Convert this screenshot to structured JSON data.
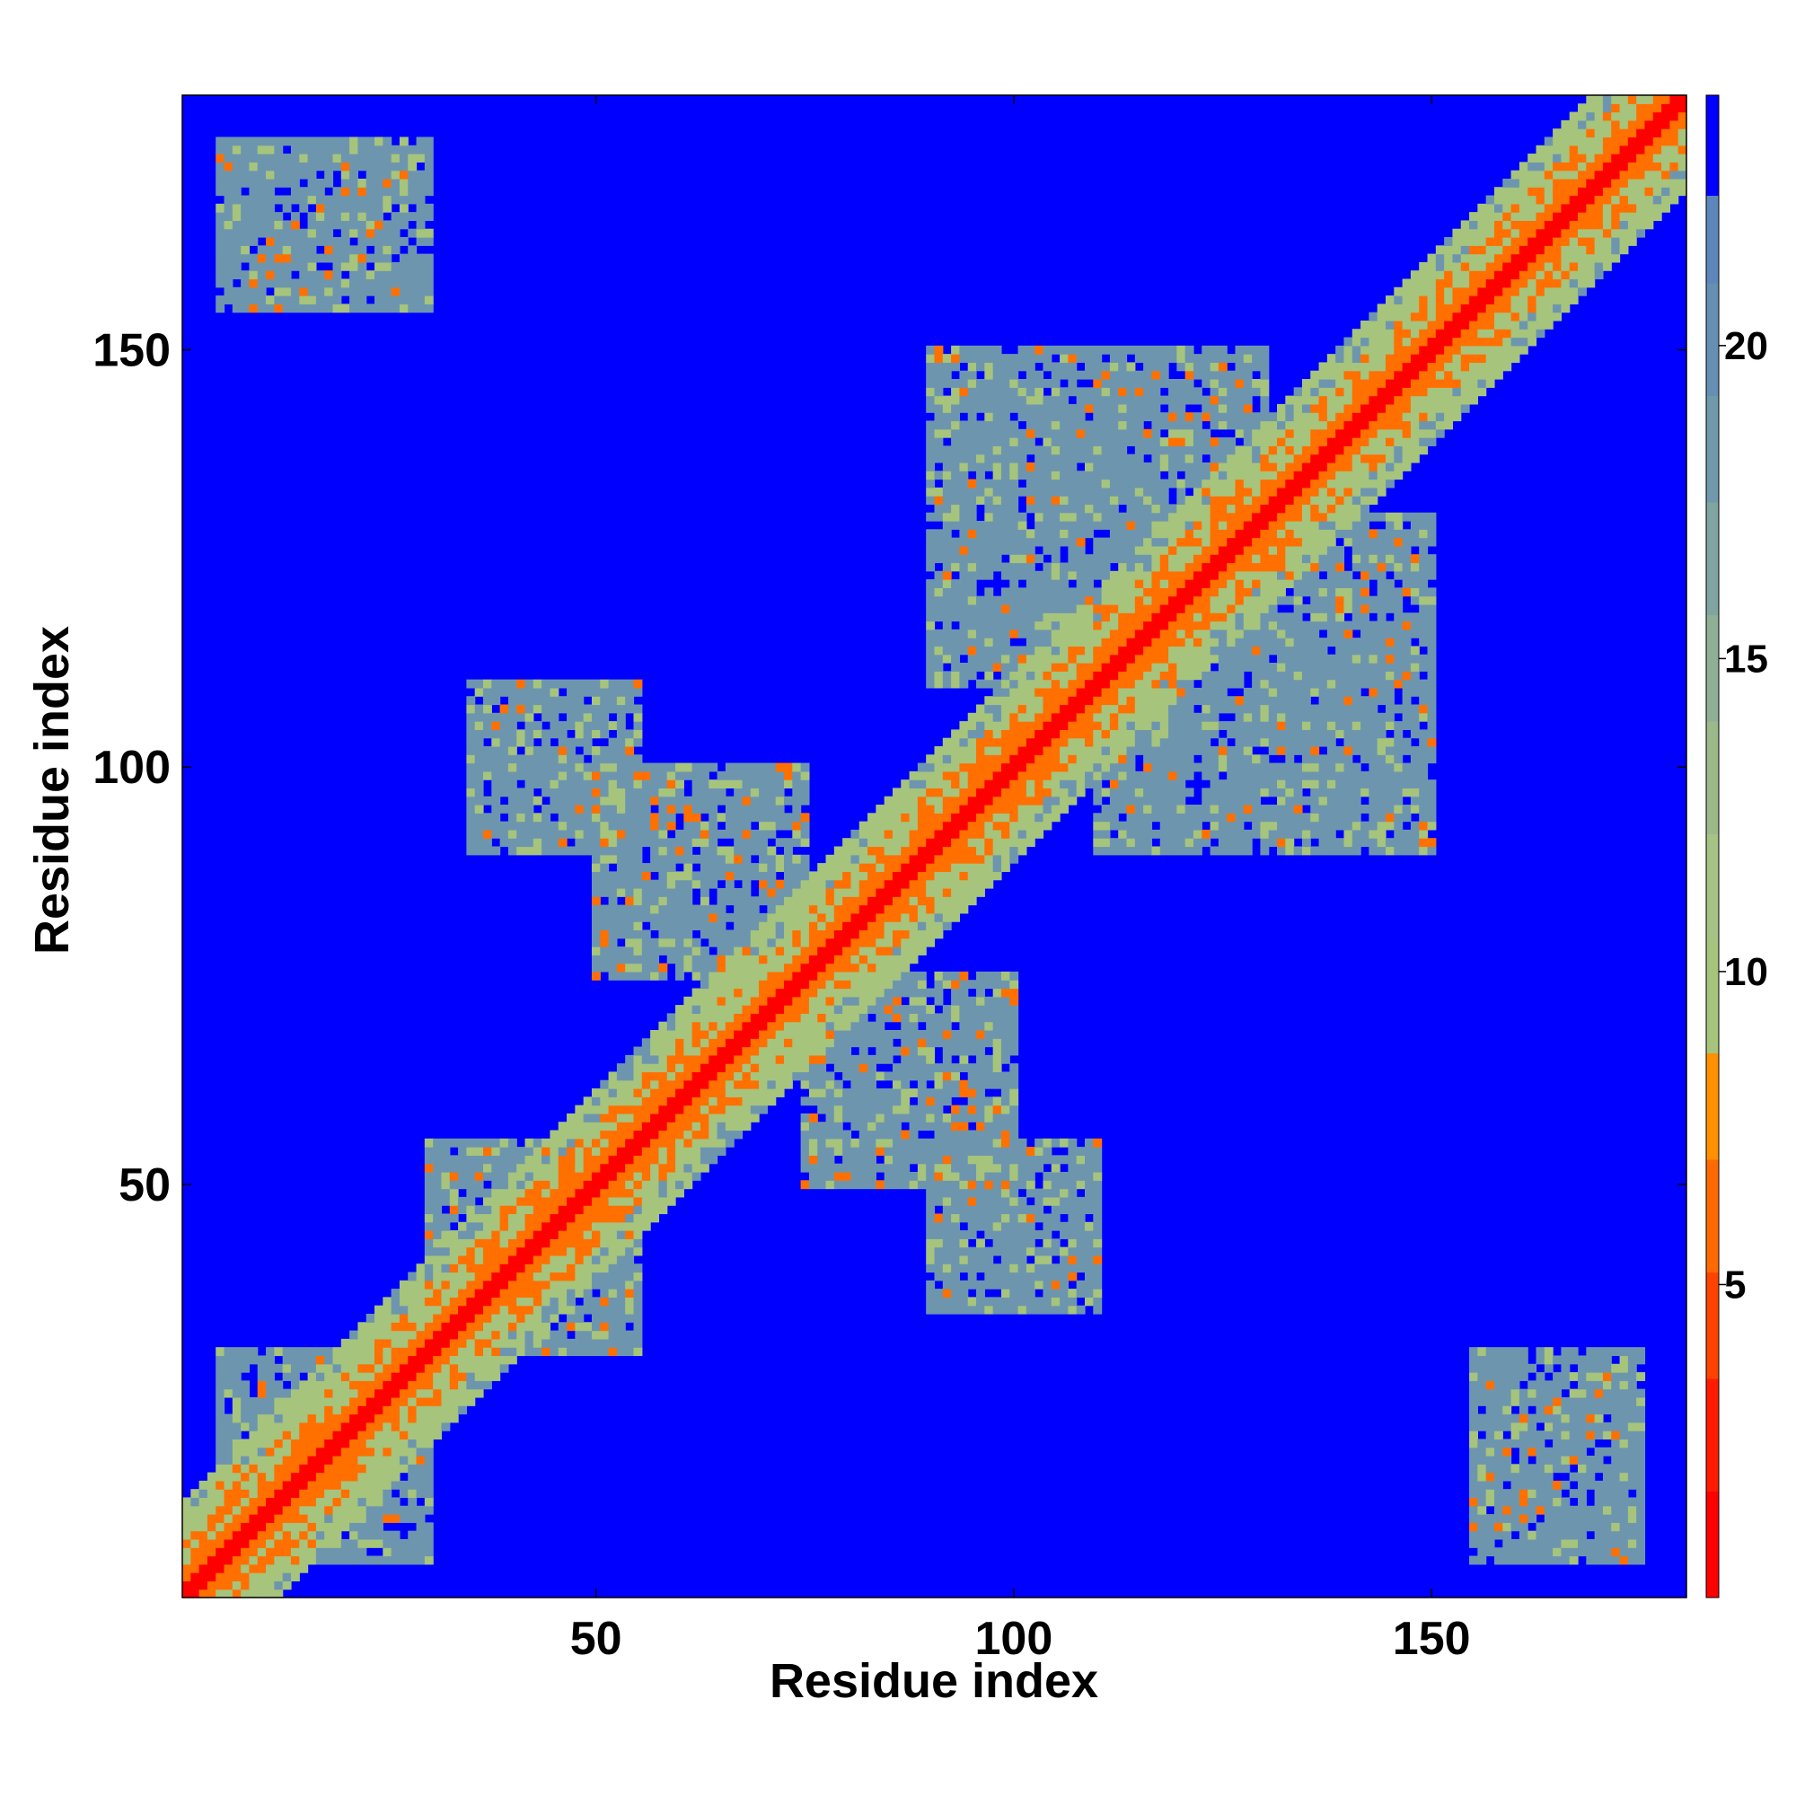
{
  "chart_data": {
    "type": "heatmap",
    "title": "",
    "xlabel": "Residue index",
    "ylabel": "Residue index",
    "n_residues": 180,
    "xlim": [
      1,
      180
    ],
    "ylim": [
      1,
      180
    ],
    "x_ticks": [
      50,
      100,
      150
    ],
    "y_ticks": [
      50,
      100,
      150
    ],
    "x_tick_labels": [
      "50",
      "100",
      "150"
    ],
    "y_tick_labels": [
      "50",
      "100",
      "150"
    ],
    "colorbar": {
      "ticks": [
        5,
        10,
        15,
        20
      ],
      "tick_labels": [
        "5",
        "10",
        "15",
        "20"
      ],
      "range": [
        0,
        24
      ],
      "levels": [
        {
          "from": 0,
          "to": 1.7,
          "color": "#ff0000"
        },
        {
          "from": 1.7,
          "to": 3.5,
          "color": "#ff1a00"
        },
        {
          "from": 3.5,
          "to": 5.2,
          "color": "#ff4200"
        },
        {
          "from": 5.2,
          "to": 7.0,
          "color": "#ff6a00"
        },
        {
          "from": 7.0,
          "to": 8.7,
          "color": "#ff9000"
        },
        {
          "from": 8.7,
          "to": 10.5,
          "color": "#a6c47c"
        },
        {
          "from": 10.5,
          "to": 12.2,
          "color": "#a6c285"
        },
        {
          "from": 12.2,
          "to": 14.0,
          "color": "#9cb98a"
        },
        {
          "from": 14.0,
          "to": 15.7,
          "color": "#8fb094"
        },
        {
          "from": 15.7,
          "to": 17.5,
          "color": "#80a5a0"
        },
        {
          "from": 17.5,
          "to": 19.2,
          "color": "#7099ab"
        },
        {
          "from": 19.2,
          "to": 21.0,
          "color": "#6590b4"
        },
        {
          "from": 21.0,
          "to": 22.4,
          "color": "#5d87bb"
        },
        {
          "from": 22.4,
          "to": 24,
          "color": "#0000ff"
        }
      ]
    },
    "colors": {
      "background": "#0000ff",
      "near": "#ff0000",
      "close": "#ff7000",
      "mid": "#a6c47c",
      "far": "#6d96ae"
    },
    "symmetric": true,
    "contact_blocks": [
      {
        "i": [
          1,
          180
        ],
        "j": [
          1,
          180
        ],
        "kind": "diagonal",
        "note": "main diagonal contact band"
      },
      {
        "i": [
          5,
          30
        ],
        "j": [
          155,
          175
        ],
        "kind": "block"
      },
      {
        "i": [
          5,
          30
        ],
        "j": [
          5,
          30
        ],
        "kind": "self"
      },
      {
        "i": [
          30,
          55
        ],
        "j": [
          35,
          55
        ],
        "kind": "hairpin"
      },
      {
        "i": [
          35,
          55
        ],
        "j": [
          90,
          110
        ],
        "kind": "cross-strand"
      },
      {
        "i": [
          50,
          75
        ],
        "j": [
          75,
          100
        ],
        "kind": "cross-strand"
      },
      {
        "i": [
          90,
          130
        ],
        "j": [
          110,
          150
        ],
        "kind": "sheet"
      },
      {
        "i": [
          120,
          135
        ],
        "j": [
          120,
          130
        ],
        "kind": "cross-strand"
      },
      {
        "i": [
          150,
          175
        ],
        "j": [
          5,
          30
        ],
        "kind": "block"
      }
    ]
  }
}
